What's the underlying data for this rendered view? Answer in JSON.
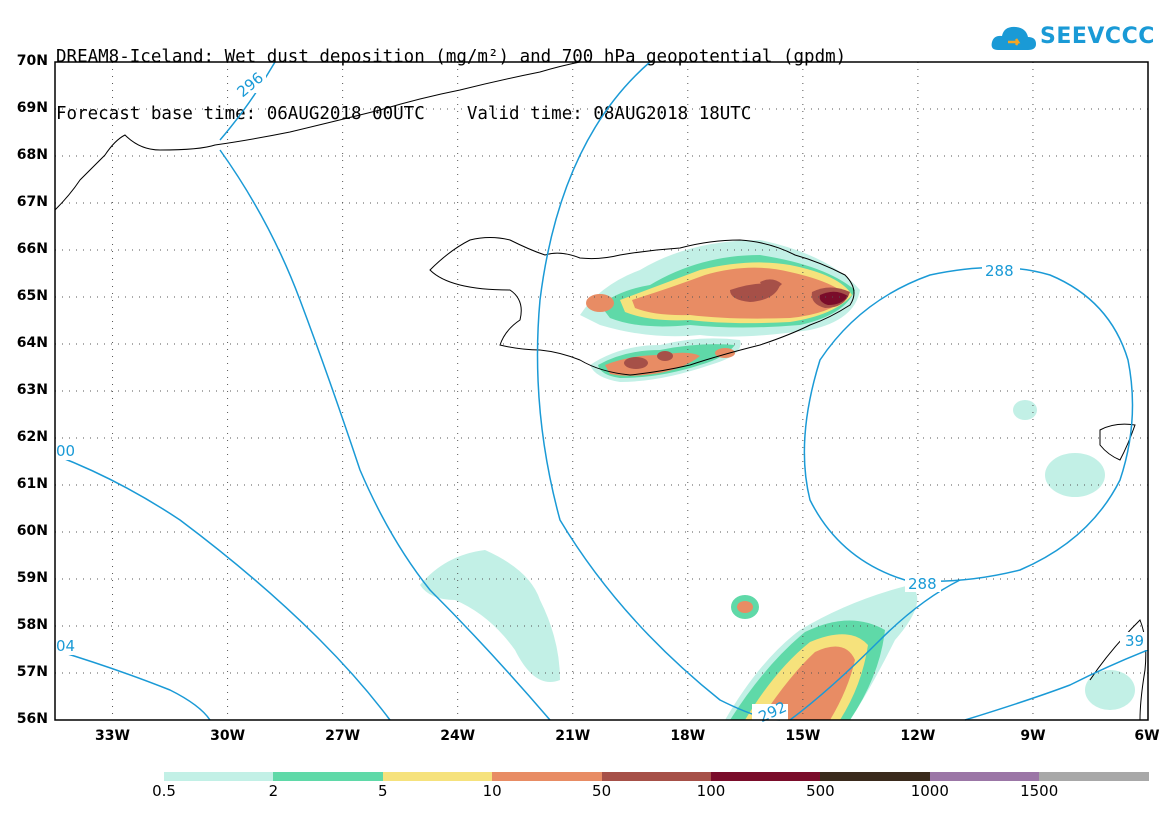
{
  "title": {
    "line1": "DREAM8-Iceland: Wet dust deposition (mg/m²) and 700 hPa geopotential (gpdm)",
    "line2": "Forecast base time: 06AUG2018 00UTC    Valid time: 08AUG2018 18UTC"
  },
  "logo": {
    "text": "SEEVCCC",
    "icon": "cloud-icon",
    "color": "#1a9ad6"
  },
  "axes": {
    "lat_labels": [
      "70N",
      "69N",
      "68N",
      "67N",
      "66N",
      "65N",
      "64N",
      "63N",
      "62N",
      "61N",
      "60N",
      "59N",
      "58N",
      "57N",
      "56N"
    ],
    "lon_labels": [
      "33W",
      "30W",
      "27W",
      "24W",
      "21W",
      "18W",
      "15W",
      "12W",
      "9W",
      "6W"
    ],
    "lat_range": [
      56,
      70
    ],
    "lon_range": [
      -34.5,
      -6
    ]
  },
  "contours": {
    "color": "#1a9ad6",
    "labels": [
      "296",
      "288",
      "288",
      "292",
      "00",
      "04",
      "39"
    ]
  },
  "legend": {
    "labels": [
      "0.5",
      "2",
      "5",
      "10",
      "50",
      "100",
      "500",
      "1000",
      "1500"
    ],
    "colors": [
      "#c2f0e6",
      "#5fd9a8",
      "#f6e27c",
      "#e88c64",
      "#a65048",
      "#7a0c2a",
      "#3a2a1c",
      "#9b76a6",
      "#a8a8a8"
    ]
  }
}
